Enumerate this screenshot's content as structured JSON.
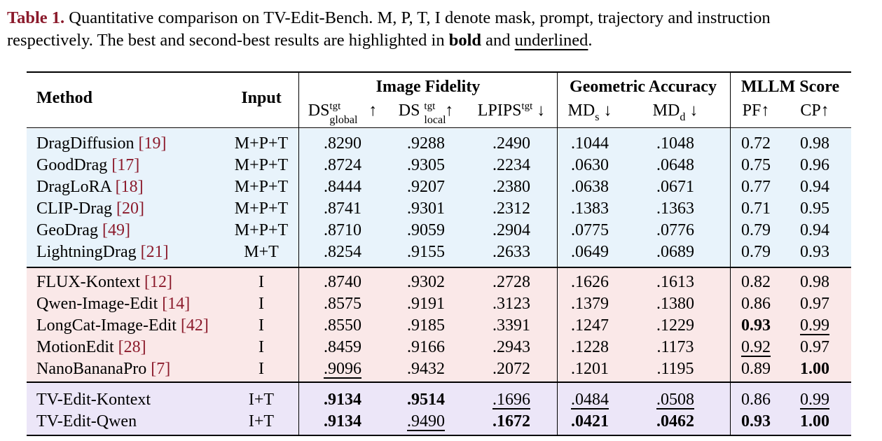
{
  "caption": {
    "label": "Table 1.",
    "line1": "Quantitative comparison on TV-Edit-Bench.  M, P, T, I denote mask, prompt, trajectory and instruction",
    "line2_a": "respectively. The best and second-best results are highlighted in",
    "bold_word": "bold",
    "and": "and",
    "underlined_word": "underlined",
    "period": "."
  },
  "header": {
    "method": "Method",
    "input": "Input",
    "group_fidelity": "Image Fidelity",
    "group_geo": "Geometric Accuracy",
    "group_mllm": "MLLM Score",
    "ds_global": {
      "base": "DS",
      "sup": "tgt",
      "sub": "global",
      "arrow": "↑"
    },
    "ds_local": {
      "base": "DS",
      "sup": "tgt",
      "sub": "local",
      "arrow": "↑"
    },
    "lpips": {
      "base": "LPIPS",
      "sup": "tgt",
      "arrow": "↓"
    },
    "mds": {
      "base": "MD",
      "sub": "s",
      "arrow": "↓"
    },
    "mdd": {
      "base": "MD",
      "sub": "d",
      "arrow": "↓"
    },
    "pf": "PF↑",
    "cp": "CP↑"
  },
  "groups": [
    {
      "band_color": "#e8f3fb",
      "rows": [
        {
          "method": "DragDiffusion",
          "cite": "[19]",
          "input": "M+P+T",
          "vals": [
            ".8290",
            ".9288",
            ".2490",
            ".1044",
            ".1048",
            "0.72",
            "0.98"
          ]
        },
        {
          "method": "GoodDrag",
          "cite": "[17]",
          "input": "M+P+T",
          "vals": [
            ".8724",
            ".9305",
            ".2234",
            ".0630",
            ".0648",
            "0.75",
            "0.96"
          ]
        },
        {
          "method": "DragLoRA",
          "cite": "[18]",
          "input": "M+P+T",
          "vals": [
            ".8444",
            ".9207",
            ".2380",
            ".0638",
            ".0671",
            "0.77",
            "0.94"
          ]
        },
        {
          "method": "CLIP-Drag",
          "cite": "[20]",
          "input": "M+P+T",
          "vals": [
            ".8741",
            ".9301",
            ".2312",
            ".1383",
            ".1363",
            "0.71",
            "0.95"
          ]
        },
        {
          "method": "GeoDrag",
          "cite": "[49]",
          "input": "M+P+T",
          "vals": [
            ".8710",
            ".9059",
            ".2904",
            ".0775",
            ".0776",
            "0.79",
            "0.94"
          ]
        },
        {
          "method": "LightningDrag",
          "cite": "[21]",
          "input": "M+T",
          "vals": [
            ".8254",
            ".9155",
            ".2633",
            ".0649",
            ".0689",
            "0.79",
            "0.93"
          ]
        }
      ]
    },
    {
      "band_color": "#fae8e8",
      "rows": [
        {
          "method": "FLUX-Kontext",
          "cite": "[12]",
          "input": "I",
          "vals": [
            ".8740",
            ".9302",
            ".2728",
            ".1626",
            ".1613",
            "0.82",
            "0.98"
          ]
        },
        {
          "method": "Qwen-Image-Edit",
          "cite": "[14]",
          "input": "I",
          "vals": [
            ".8575",
            ".9191",
            ".3123",
            ".1379",
            ".1380",
            "0.86",
            "0.97"
          ]
        },
        {
          "method": "LongCat-Image-Edit",
          "cite": "[42]",
          "input": "I",
          "vals": [
            ".8550",
            ".9185",
            ".3391",
            ".1247",
            ".1229",
            "0.93",
            "0.99"
          ]
        },
        {
          "method": "MotionEdit",
          "cite": "[28]",
          "input": "I",
          "vals": [
            ".8459",
            ".9166",
            ".2943",
            ".1228",
            ".1173",
            "0.92",
            "0.97"
          ]
        },
        {
          "method": "NanoBananaPro",
          "cite": "[7]",
          "input": "I",
          "vals": [
            ".9096",
            ".9432",
            ".2072",
            ".1201",
            ".1195",
            "0.89",
            "1.00"
          ]
        }
      ]
    },
    {
      "band_color": "#ece6f8",
      "rows": [
        {
          "method": "TV-Edit-Kontext",
          "cite": "",
          "input": "I+T",
          "vals": [
            ".9134",
            ".9514",
            ".1696",
            ".0484",
            ".0508",
            "0.86",
            "0.99"
          ]
        },
        {
          "method": "TV-Edit-Qwen",
          "cite": "",
          "input": "I+T",
          "vals": [
            ".9134",
            ".9490",
            ".1672",
            ".0421",
            ".0462",
            "0.93",
            "1.00"
          ]
        }
      ]
    }
  ],
  "styles": {
    "bold": [
      [
        1,
        2,
        5
      ],
      [
        1,
        4,
        6
      ],
      [
        2,
        0,
        0
      ],
      [
        2,
        0,
        1
      ],
      [
        2,
        1,
        0
      ],
      [
        2,
        1,
        2
      ],
      [
        2,
        1,
        3
      ],
      [
        2,
        1,
        4
      ],
      [
        2,
        1,
        5
      ],
      [
        2,
        1,
        6
      ]
    ],
    "underline": [
      [
        1,
        2,
        6
      ],
      [
        1,
        3,
        5
      ],
      [
        1,
        4,
        0
      ],
      [
        2,
        0,
        2
      ],
      [
        2,
        0,
        3
      ],
      [
        2,
        0,
        4
      ],
      [
        2,
        0,
        6
      ],
      [
        2,
        1,
        1
      ]
    ]
  },
  "colors": {
    "caption_label": "#8b1a2b",
    "cite": "#8b1a2b",
    "band_blue": "#e8f3fb",
    "band_red": "#fae8e8",
    "band_purple": "#ece6f8"
  }
}
